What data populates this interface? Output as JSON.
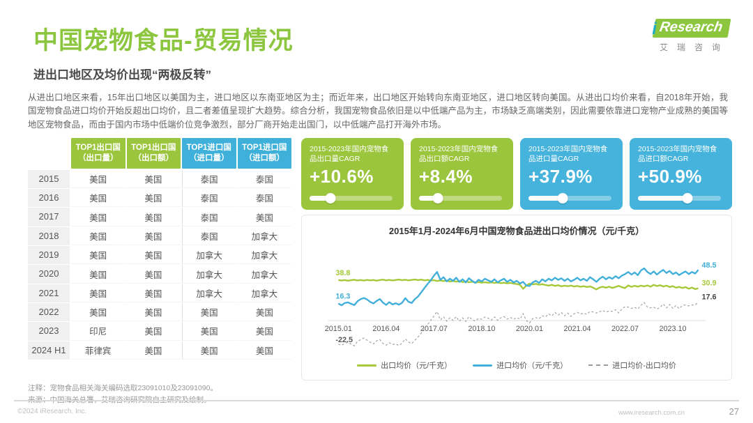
{
  "page": {
    "title": "中国宠物食品-贸易情况",
    "subtitle": "进出口地区及均价出现“两极反转”"
  },
  "logo": {
    "brand_i": "i",
    "brand": "Research",
    "brand_cn": "艾瑞咨询"
  },
  "intro": {
    "paragraph": "从进出口地区来看，15年出口地区以美国为主，进口地区以东南亚地区为主；而近年来，出口地区开始转向东南亚地区，进口地区转向美国。从进出口均价来看，自2018年开始，我国宠物食品进口均价开始反超出口均价，且二者差值呈现扩大趋势。综合分析，我国宠物食品依旧是以中低端产品为主，市场缺乏高端类别，因此需要依靠进口宠物产业成熟的美国等地区宠物食品，而由于国内市场中低端价位竞争激烈，部分厂商开始走出国门，以中低端产品打开海外市场。"
  },
  "table": {
    "headers": [
      {
        "title": "TOP1出口国",
        "sub": "（出口量）",
        "color": "green"
      },
      {
        "title": "TOP1出口国",
        "sub": "（出口额）",
        "color": "green"
      },
      {
        "title": "TOP1进口国",
        "sub": "（进口量）",
        "color": "blue"
      },
      {
        "title": "TOP1进口国",
        "sub": "（进口额）",
        "color": "blue"
      }
    ],
    "rows": [
      {
        "year": "2015",
        "cells": [
          "美国",
          "美国",
          "泰国",
          "泰国"
        ]
      },
      {
        "year": "2016",
        "cells": [
          "美国",
          "美国",
          "泰国",
          "泰国"
        ]
      },
      {
        "year": "2017",
        "cells": [
          "美国",
          "美国",
          "泰国",
          "美国"
        ]
      },
      {
        "year": "2018",
        "cells": [
          "美国",
          "美国",
          "泰国",
          "加拿大"
        ]
      },
      {
        "year": "2019",
        "cells": [
          "美国",
          "美国",
          "加拿大",
          "加拿大"
        ]
      },
      {
        "year": "2020",
        "cells": [
          "美国",
          "美国",
          "加拿大",
          "加拿大"
        ]
      },
      {
        "year": "2021",
        "cells": [
          "美国",
          "美国",
          "加拿大",
          "加拿大"
        ]
      },
      {
        "year": "2022",
        "cells": [
          "美国",
          "美国",
          "美国",
          "美国"
        ]
      },
      {
        "year": "2023",
        "cells": [
          "印尼",
          "美国",
          "美国",
          "美国"
        ]
      },
      {
        "year": "2024 H1",
        "cells": [
          "菲律宾",
          "美国",
          "美国",
          "美国"
        ]
      }
    ]
  },
  "cards": [
    {
      "label": "2015-2023年国内宠物食品出口量CAGR",
      "value": "+10.6%",
      "color": "green",
      "slider_pct": 24
    },
    {
      "label": "2015-2023年国内宠物食品出口额CAGR",
      "value": "+8.4%",
      "color": "green",
      "slider_pct": 22
    },
    {
      "label": "2015-2023年国内宠物食品进口量CAGR",
      "value": "+37.9%",
      "color": "blue",
      "slider_pct": 40
    },
    {
      "label": "2015-2023年国内宠物食品进口额CAGR",
      "value": "+50.9%",
      "color": "blue",
      "slider_pct": 58
    }
  ],
  "chart_data": {
    "type": "line",
    "title": "2015年1月-2024年6月中国宠物食品进出口均价情况（元/千克）",
    "x_unit": "month",
    "x_start": "2015.01",
    "x_end": "2024.06",
    "x_ticks": [
      "2015.01",
      "2016.04",
      "2017.07",
      "2018.10",
      "2020.01",
      "2021.04",
      "2022.07",
      "2023.10"
    ],
    "x_tick_indices": [
      0,
      15,
      30,
      45,
      60,
      75,
      90,
      105
    ],
    "ylim": [
      -26,
      52
    ],
    "grid": false,
    "legend_position": "bottom",
    "series": [
      {
        "name": "出口均价（元/千克）",
        "key": "export",
        "color": "#A6C839",
        "style": "solid",
        "values": [
          38.8,
          38.3,
          38.7,
          38.1,
          38.6,
          39.0,
          38.4,
          38.8,
          38.3,
          38.9,
          38.5,
          38.8,
          38.2,
          38.7,
          39.1,
          38.5,
          38.9,
          38.4,
          38.8,
          39.2,
          38.6,
          39.0,
          38.5,
          38.9,
          39.3,
          38.7,
          39.1,
          38.5,
          38.9,
          38.3,
          38.6,
          37.9,
          38.4,
          37.8,
          38.1,
          37.4,
          37.9,
          37.2,
          37.7,
          36.9,
          37.4,
          36.7,
          37.1,
          36.5,
          36.9,
          36.3,
          36.7,
          36.1,
          36.6,
          36.0,
          36.4,
          35.8,
          36.2,
          35.6,
          36.0,
          35.4,
          35.0,
          34.2,
          30.4,
          33.5,
          35.3,
          34.6,
          35.1,
          34.3,
          34.8,
          34.0,
          33.5,
          34.1,
          33.2,
          33.8,
          32.8,
          33.4,
          32.9,
          33.5,
          32.6,
          33.1,
          32.3,
          32.9,
          32.1,
          32.7,
          31.4,
          29.8,
          31.6,
          32.3,
          31.5,
          32.4,
          31.2,
          32.1,
          33.2,
          31.9,
          31.1,
          33.6,
          32.3,
          33.3,
          32.5,
          33.4,
          32.7,
          33.6,
          32.4,
          34.2,
          33.0,
          33.8,
          32.6,
          33.4,
          32.1,
          32.9,
          31.5,
          32.2,
          31.1,
          32.0,
          30.5,
          31.6,
          30.1,
          30.9
        ]
      },
      {
        "name": "进口均价（元/千克）",
        "key": "import",
        "color": "#41AFDA",
        "style": "solid",
        "values": [
          16.3,
          14.6,
          16.8,
          17.4,
          16.0,
          14.8,
          18.5,
          20.5,
          21.6,
          20.2,
          17.8,
          16.4,
          18.8,
          20.6,
          17.2,
          15.0,
          17.6,
          15.4,
          16.6,
          15.2,
          17.0,
          21.5,
          18.0,
          16.8,
          20.5,
          23.0,
          27.0,
          31.0,
          35.0,
          38.5,
          43.0,
          46.5,
          39.0,
          41.5,
          37.5,
          40.0,
          38.0,
          41.0,
          37.0,
          39.5,
          36.5,
          40.5,
          38.0,
          36.0,
          39.0,
          37.5,
          40.0,
          38.5,
          37.0,
          39.5,
          36.5,
          38.5,
          40.0,
          37.0,
          39.0,
          36.5,
          38.0,
          35.5,
          37.0,
          33.5,
          33.0,
          36.5,
          38.0,
          36.0,
          39.5,
          37.5,
          40.0,
          38.5,
          41.0,
          39.0,
          40.5,
          38.0,
          40.0,
          37.5,
          39.0,
          41.0,
          38.5,
          40.0,
          38.0,
          41.5,
          39.5,
          37.0,
          40.0,
          42.0,
          39.5,
          41.5,
          40.0,
          42.5,
          40.5,
          43.0,
          44.5,
          46.5,
          44.0,
          46.0,
          43.5,
          48.0,
          50.0,
          46.5,
          44.5,
          47.0,
          44.0,
          46.5,
          48.5,
          45.5,
          47.5,
          44.5,
          46.0,
          43.5,
          45.5,
          47.0,
          44.5,
          46.5,
          45.0,
          48.5
        ]
      },
      {
        "name": "进口均价-出口均价",
        "key": "diff",
        "color": "#9a9a9a",
        "style": "dashed",
        "derived": "import-export"
      }
    ],
    "annotations": {
      "export_start": "38.8",
      "import_start": "16.3",
      "diff_start": "-22.5",
      "import_end": "48.5",
      "export_end": "30.9",
      "diff_end": "17.6"
    }
  },
  "notes": {
    "note": "注释：宠物食品相关海关编码选取23091010及23091090。",
    "source": "来源：中国海关总署，艾瑞咨询研究院自主研究及绘制。"
  },
  "footer": {
    "copyright": "©2024 iResearch. Inc.",
    "website": "www.iresearch.com.cn",
    "page_number": "27"
  },
  "colors": {
    "title_green": "#8CC63F",
    "accent_green": "#9BC53D",
    "accent_blue": "#45B3DB",
    "line_export": "#A6C839",
    "line_import": "#41AFDA",
    "line_diff": "#9a9a9a"
  }
}
